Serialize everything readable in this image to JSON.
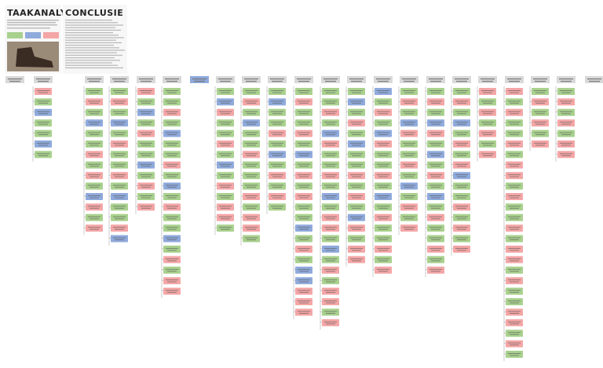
{
  "header": {
    "title": "TAAKANALYSE"
  },
  "conclusion": {
    "title": "CONCLUSIE"
  }
}
